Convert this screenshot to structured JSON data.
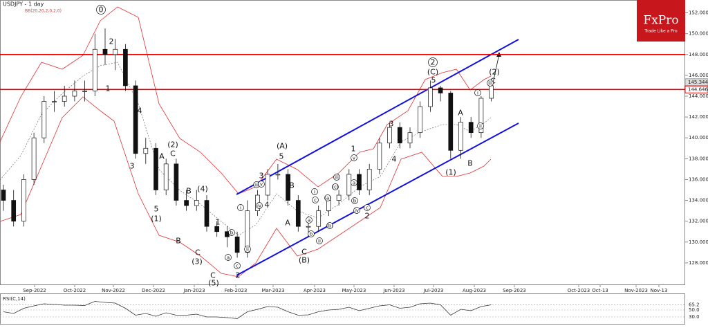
{
  "chart_data": {
    "type": "candlestick",
    "title": "USDJPY - 1 day",
    "indicator": "BB(20,20,2,0,2,0)",
    "brand": "FxPro",
    "tagline": "Trade Like a Pro",
    "open": [
      135,
      134,
      132,
      136,
      140,
      143.5,
      143.5,
      144,
      144.5,
      144.5,
      148.5,
      148,
      148.5,
      145,
      138.5,
      139,
      135,
      137.5,
      134,
      133.5,
      134,
      131.5,
      131,
      130.5,
      129,
      133,
      134.5,
      136.5,
      136.5,
      134,
      131.5,
      131.5,
      133,
      134,
      134.5,
      136.5,
      135,
      137,
      139.5,
      141,
      139.5,
      140.5,
      143,
      144.8,
      144.3,
      138.8,
      141.5,
      140.5,
      143.8
    ],
    "high": [
      135.5,
      135,
      136.5,
      140.5,
      144,
      144.5,
      145,
      145.5,
      145.5,
      150,
      150.5,
      149.5,
      149,
      145.5,
      140,
      139.5,
      138,
      138,
      135,
      135,
      134.5,
      132,
      131.5,
      131,
      134,
      135,
      137,
      137.5,
      137,
      134.5,
      132.5,
      133.5,
      134.5,
      135,
      137,
      137,
      137.5,
      140,
      141.5,
      141.5,
      141,
      143.5,
      145.5,
      145,
      144.5,
      142,
      142,
      144,
      145.5
    ],
    "low": [
      133,
      131.5,
      131.5,
      135.5,
      139.5,
      142.5,
      143,
      143.5,
      143.5,
      144,
      147,
      146.5,
      144.5,
      138,
      137.5,
      134.5,
      134.5,
      133.5,
      133,
      133,
      131,
      130.5,
      129.5,
      128.5,
      128.5,
      132.5,
      134,
      136,
      133.5,
      131,
      130.5,
      131,
      132.5,
      133.5,
      134,
      134.5,
      134.5,
      136.5,
      139,
      139,
      139,
      140,
      142.5,
      143.5,
      138,
      138,
      140,
      140,
      143.5
    ],
    "close": [
      134,
      132,
      136,
      140,
      143.5,
      143.5,
      144,
      144.5,
      144.5,
      148.5,
      148,
      148.5,
      145,
      138.5,
      139,
      135,
      137.5,
      134,
      133.5,
      134,
      131.5,
      131,
      130.5,
      129,
      133,
      134.5,
      136.5,
      136.5,
      134,
      131.5,
      131.5,
      133,
      134,
      134.5,
      136.5,
      135,
      137,
      139.5,
      141,
      139.5,
      140.5,
      143,
      144.8,
      144.3,
      138.8,
      141.5,
      140.5,
      143.8,
      145.0
    ],
    "ylim": [
      126.0,
      152.9
    ],
    "yticks": [
      {
        "value": 128,
        "label": "128.000"
      },
      {
        "value": 130,
        "label": "130.000"
      },
      {
        "value": 132,
        "label": "132.000"
      },
      {
        "value": 134,
        "label": "134.000"
      },
      {
        "value": 136,
        "label": "136.000"
      },
      {
        "value": 138,
        "label": "138.000"
      },
      {
        "value": 140,
        "label": "140.000"
      },
      {
        "value": 142,
        "label": "142.000"
      },
      {
        "value": 144,
        "label": "144.000"
      },
      {
        "value": 146,
        "label": "146.000"
      },
      {
        "value": 148,
        "label": "148.000"
      },
      {
        "value": 150,
        "label": "150.000"
      },
      {
        "value": 152,
        "label": "152.000"
      }
    ],
    "hlines": [
      148,
      144.646
    ],
    "hline_color": "#e00000",
    "price_tags": [
      {
        "value": 145.344,
        "label": "145.344"
      },
      {
        "value": 144.646,
        "label": "144.646"
      }
    ],
    "xlabels": [
      "Sep-2022",
      "Oct-2022",
      "Nov-2022",
      "Dec-2022",
      "Jan-2023",
      "Feb-2023",
      "Mar-2023",
      "Apr-2023",
      "May-2023",
      "Jun-2023",
      "Jul-2023",
      "Aug-2023",
      "Sep-2023",
      "Oct-2023",
      "Oct-13",
      "Nov-2023",
      "Nov-13"
    ],
    "wave_labels": [
      "0",
      "2",
      "1",
      "4",
      "3",
      "A",
      "(2)",
      "C",
      "B",
      "(4)",
      "5",
      "(1)",
      "B",
      "C",
      "(3)",
      "1",
      "C",
      "(5)",
      "2",
      "3",
      "4",
      "5",
      "(A)",
      "B",
      "A",
      "C",
      "(B)",
      "1",
      "2",
      "3",
      "4",
      "5",
      "(C)",
      "2",
      "A",
      "B",
      "(1)",
      "(2)",
      "C",
      "i",
      "ii",
      "iii",
      "iv",
      "v",
      "a",
      "b",
      "c",
      "i",
      "ii",
      "iii",
      "iv",
      "v",
      "a",
      "b",
      "c",
      "(a)",
      "(b)",
      "(c)",
      "a",
      "b",
      "c",
      "i",
      "ii",
      "iii"
    ],
    "rsi": {
      "name": "RSI(C,14)",
      "values": [
        45,
        40,
        55,
        62,
        68,
        66,
        64,
        64,
        63,
        75,
        72,
        70,
        55,
        35,
        40,
        32,
        42,
        35,
        35,
        38,
        30,
        30,
        28,
        25,
        45,
        52,
        60,
        58,
        45,
        35,
        36,
        45,
        50,
        52,
        58,
        48,
        55,
        62,
        65,
        55,
        58,
        68,
        70,
        65,
        35,
        52,
        48,
        60,
        65
      ],
      "ylim": [
        10,
        96
      ],
      "yticks": [
        {
          "value": 30,
          "label": "30.0"
        },
        {
          "value": 50,
          "label": "50.0"
        },
        65.2
      ]
    }
  }
}
